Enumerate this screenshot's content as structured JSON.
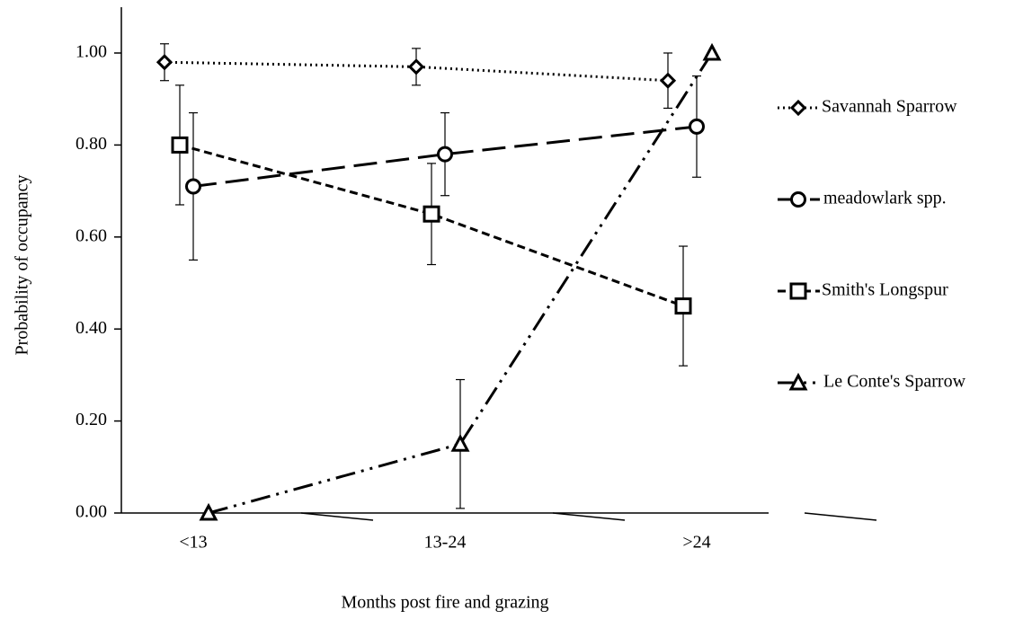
{
  "chart_data": {
    "type": "line",
    "x_label": "Months post fire and grazing",
    "y_label": "Probability of occupancy",
    "categories": [
      "<13",
      "13-24",
      ">24"
    ],
    "ylim": [
      0,
      1.0
    ],
    "yticks": [
      {
        "value": 0,
        "label": "0.00"
      },
      {
        "value": 0.2,
        "label": "0.20"
      },
      {
        "value": 0.4,
        "label": "0.40"
      },
      {
        "value": 0.6,
        "label": "0.60"
      },
      {
        "value": 0.8,
        "label": "0.80"
      },
      {
        "value": 1.0,
        "label": "1.00"
      }
    ],
    "legend": "right",
    "series": [
      {
        "name": "Savannah Sparrow",
        "color": "#000000",
        "marker": "diamond",
        "dash": "dotted",
        "values": [
          0.98,
          0.97,
          0.94
        ],
        "errors": [
          0.04,
          0.04,
          0.06
        ]
      },
      {
        "name": "meadowlark spp.",
        "color": "#000000",
        "marker": "circle",
        "dash": "long",
        "values": [
          0.71,
          0.78,
          0.84
        ],
        "errors": [
          0.16,
          0.09,
          0.11
        ]
      },
      {
        "name": "Smith's Longspur",
        "color": "#000000",
        "marker": "square",
        "dash": "short",
        "values": [
          0.8,
          0.65,
          0.45
        ],
        "errors": [
          0.13,
          0.11,
          0.13
        ]
      },
      {
        "name": "Le Conte's Sparrow",
        "color": "#000000",
        "marker": "triangle",
        "dash": "dashdotdot",
        "values": [
          0,
          0.15,
          1.0
        ],
        "errors": [
          0,
          0.14,
          0
        ]
      }
    ]
  }
}
